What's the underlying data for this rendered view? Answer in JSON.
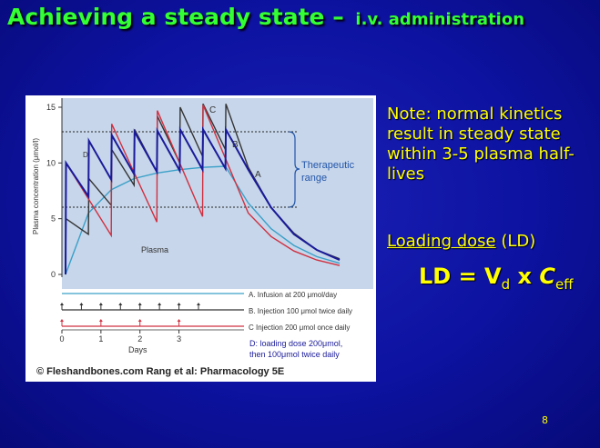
{
  "title": {
    "main": "Achieving a steady state – ",
    "sub": "i.v. administration"
  },
  "note": "Note: normal kinetics result in steady state within 3-5 plasma half-lives",
  "loading_dose": {
    "underlined": "Loading dose",
    "rest": " (LD)"
  },
  "formula": {
    "lhs": "LD = V",
    "vsub": "d",
    "mid": " x ",
    "c": "C",
    "csub": "eff"
  },
  "page_number": "8",
  "figure": {
    "ylabel": "Plasma concentration (μmol/l)",
    "yticks": [
      "0",
      "5",
      "10",
      "15"
    ],
    "xticks": [
      "0",
      "1",
      "2",
      "3"
    ],
    "xlabel": "Days",
    "plasma_label": "Plasma",
    "therapeutic_label_1": "Therapeutic",
    "therapeutic_label_2": "range",
    "curve_labels": {
      "A": "A",
      "B": "B",
      "C": "C",
      "D": "D"
    },
    "legend": [
      "A. Infusion at 200 μmol/day",
      "B. Injection 100 μmol twice daily",
      "C Injection 200 μmol once daily"
    ],
    "d_note_1": "D: loading dose 200μmol,",
    "d_note_2": "then 100μmol twice daily",
    "credit": "© Fleshandbones.com Rang et al: Pharmacology 5E"
  },
  "chart_data": {
    "type": "line",
    "ylabel": "Plasma concentration (μmol/l)",
    "xlabel": "Days",
    "ylim": [
      0,
      15
    ],
    "xlim": [
      0,
      6
    ],
    "therapeutic_range": [
      6,
      13
    ],
    "series": [
      {
        "name": "A",
        "color": "#3aa0c8",
        "x": [
          0,
          0.5,
          1,
          1.5,
          2,
          2.5,
          3,
          3.5,
          4,
          4.5,
          5,
          5.5,
          6
        ],
        "y": [
          0,
          5.5,
          7.6,
          8.6,
          9.1,
          9.4,
          9.6,
          9.7,
          6.4,
          4.1,
          2.6,
          1.6,
          1.0
        ]
      },
      {
        "name": "B",
        "color": "#333333",
        "x": [
          0,
          0.01,
          0.5,
          0.51,
          1,
          1.01,
          1.5,
          1.51,
          2,
          2.01,
          2.5,
          2.51,
          3,
          3.01,
          3.5,
          3.51,
          4,
          4.5,
          5,
          5.5,
          6
        ],
        "y": [
          0,
          5,
          3.6,
          8.6,
          6.2,
          11.2,
          8.0,
          13.0,
          9.2,
          14.2,
          10.0,
          15.0,
          10.6,
          15.5,
          11.2,
          16.0,
          9.6,
          6.0,
          3.7,
          2.2,
          1.4
        ]
      },
      {
        "name": "C",
        "color": "#d03040",
        "x": [
          0,
          0.01,
          1,
          1.01,
          2,
          2.01,
          3,
          3.01,
          4,
          4.5,
          5,
          5.5,
          6
        ],
        "y": [
          0,
          10,
          3.5,
          13.5,
          4.7,
          14.7,
          5.2,
          15.2,
          5.5,
          3.4,
          2.1,
          1.3,
          0.8
        ]
      },
      {
        "name": "D",
        "color": "#1a1a9a",
        "x": [
          0,
          0.01,
          0.5,
          0.51,
          1,
          1.01,
          1.5,
          1.51,
          2,
          2.01,
          2.5,
          2.51,
          3,
          3.01,
          3.5,
          3.51,
          4,
          4.5,
          5,
          5.5,
          6
        ],
        "y": [
          0,
          10,
          7,
          12,
          8.5,
          12.5,
          9,
          12.8,
          9.2,
          12.9,
          9.3,
          13,
          9.4,
          13,
          9.5,
          13,
          9.4,
          6.0,
          3.6,
          2.2,
          1.3
        ]
      }
    ],
    "dosing_rows": [
      {
        "name": "A",
        "type": "infusion",
        "color": "#3aa0c8"
      },
      {
        "name": "B",
        "type": "arrows",
        "color": "#333333",
        "times": [
          0,
          0.5,
          1,
          1.5,
          2,
          2.5,
          3,
          3.5
        ]
      },
      {
        "name": "C",
        "type": "arrows",
        "color": "#d03040",
        "times": [
          0,
          1,
          2,
          3
        ]
      }
    ]
  }
}
